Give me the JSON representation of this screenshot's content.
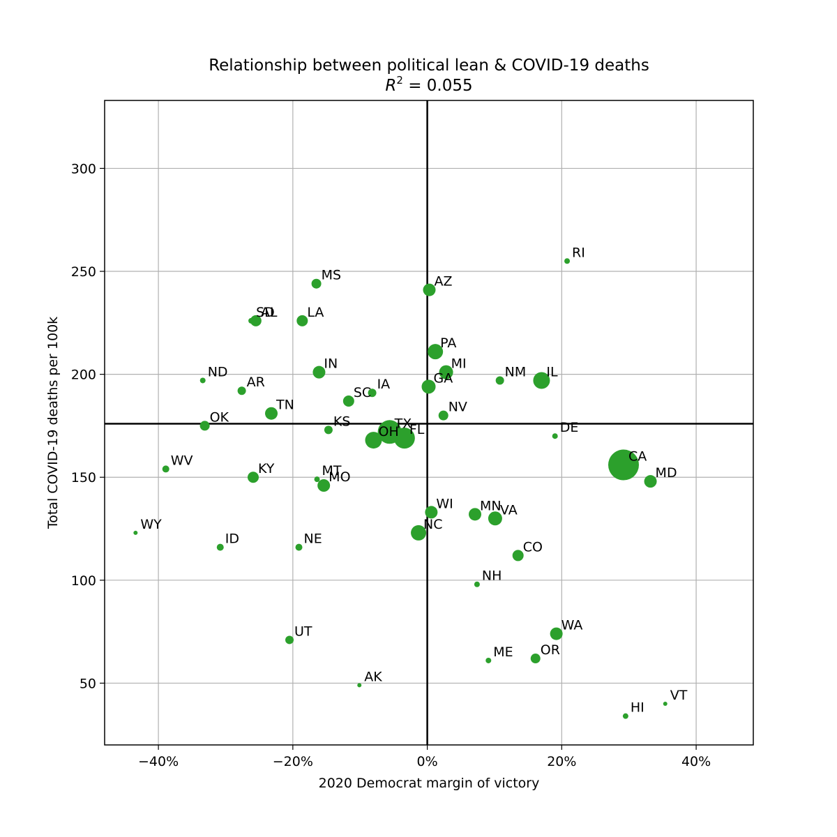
{
  "chart_data": {
    "type": "scatter",
    "title": "Relationship between political lean & COVID-19 deaths",
    "subtitle_prefix": "R",
    "subtitle_sup": "2",
    "subtitle_rest": " = 0.055",
    "xlabel": "2020 Democrat margin of victory",
    "ylabel": "Total COVID-19 deaths per 100k",
    "xlim": [
      -48,
      48.5
    ],
    "ylim": [
      20,
      333
    ],
    "x_ticks": [
      {
        "value": -40,
        "label": "−40%"
      },
      {
        "value": -20,
        "label": "−20%"
      },
      {
        "value": 0,
        "label": "0%"
      },
      {
        "value": 20,
        "label": "20%"
      },
      {
        "value": 40,
        "label": "40%"
      }
    ],
    "y_ticks": [
      {
        "value": 50,
        "label": "50"
      },
      {
        "value": 100,
        "label": "100"
      },
      {
        "value": 150,
        "label": "150"
      },
      {
        "value": 200,
        "label": "200"
      },
      {
        "value": 250,
        "label": "250"
      },
      {
        "value": 300,
        "label": "300"
      }
    ],
    "grid": true,
    "reference_lines": {
      "x": 0,
      "y": 176
    },
    "point_color": "#2ca02c",
    "points": [
      {
        "label": "RI",
        "x": 20.8,
        "y": 255,
        "size": 4
      },
      {
        "label": "MS",
        "x": -16.5,
        "y": 244,
        "size": 7
      },
      {
        "label": "AZ",
        "x": 0.3,
        "y": 241,
        "size": 9
      },
      {
        "label": "SD",
        "x": -26.2,
        "y": 226,
        "size": 4
      },
      {
        "label": "AL",
        "x": -25.5,
        "y": 226,
        "size": 8
      },
      {
        "label": "LA",
        "x": -18.6,
        "y": 226,
        "size": 8
      },
      {
        "label": "PA",
        "x": 1.2,
        "y": 211,
        "size": 11
      },
      {
        "label": "MI",
        "x": 2.8,
        "y": 201,
        "size": 10
      },
      {
        "label": "IN",
        "x": -16.1,
        "y": 201,
        "size": 9
      },
      {
        "label": "ND",
        "x": -33.4,
        "y": 197,
        "size": 4
      },
      {
        "label": "NM",
        "x": 10.8,
        "y": 197,
        "size": 6
      },
      {
        "label": "IL",
        "x": 17.0,
        "y": 197,
        "size": 12
      },
      {
        "label": "GA",
        "x": 0.2,
        "y": 194,
        "size": 10
      },
      {
        "label": "AR",
        "x": -27.6,
        "y": 192,
        "size": 6
      },
      {
        "label": "IA",
        "x": -8.2,
        "y": 191,
        "size": 6
      },
      {
        "label": "SC",
        "x": -11.7,
        "y": 187,
        "size": 8
      },
      {
        "label": "TN",
        "x": -23.2,
        "y": 181,
        "size": 9
      },
      {
        "label": "NV",
        "x": 2.4,
        "y": 180,
        "size": 7
      },
      {
        "label": "OK",
        "x": -33.1,
        "y": 175,
        "size": 7
      },
      {
        "label": "KS",
        "x": -14.7,
        "y": 173,
        "size": 6
      },
      {
        "label": "TX",
        "x": -5.6,
        "y": 172,
        "size": 17
      },
      {
        "label": "DE",
        "x": 19.0,
        "y": 170,
        "size": 4
      },
      {
        "label": "FL",
        "x": -3.4,
        "y": 169,
        "size": 15
      },
      {
        "label": "OH",
        "x": -8.0,
        "y": 168,
        "size": 12
      },
      {
        "label": "CA",
        "x": 29.2,
        "y": 156,
        "size": 22
      },
      {
        "label": "WV",
        "x": -38.9,
        "y": 154,
        "size": 5
      },
      {
        "label": "KY",
        "x": -25.9,
        "y": 150,
        "size": 8
      },
      {
        "label": "MT",
        "x": -16.4,
        "y": 149,
        "size": 4
      },
      {
        "label": "MD",
        "x": 33.2,
        "y": 148,
        "size": 9
      },
      {
        "label": "MO",
        "x": -15.4,
        "y": 146,
        "size": 9
      },
      {
        "label": "WI",
        "x": 0.6,
        "y": 133,
        "size": 9
      },
      {
        "label": "MN",
        "x": 7.1,
        "y": 132,
        "size": 9
      },
      {
        "label": "VA",
        "x": 10.1,
        "y": 130,
        "size": 10
      },
      {
        "label": "WY",
        "x": -43.4,
        "y": 123,
        "size": 3
      },
      {
        "label": "NC",
        "x": -1.3,
        "y": 123,
        "size": 11
      },
      {
        "label": "ID",
        "x": -30.8,
        "y": 116,
        "size": 5
      },
      {
        "label": "NE",
        "x": -19.1,
        "y": 116,
        "size": 5
      },
      {
        "label": "CO",
        "x": 13.5,
        "y": 112,
        "size": 8
      },
      {
        "label": "NH",
        "x": 7.4,
        "y": 98,
        "size": 4
      },
      {
        "label": "WA",
        "x": 19.2,
        "y": 74,
        "size": 9
      },
      {
        "label": "UT",
        "x": -20.5,
        "y": 71,
        "size": 6
      },
      {
        "label": "OR",
        "x": 16.1,
        "y": 62,
        "size": 7
      },
      {
        "label": "ME",
        "x": 9.1,
        "y": 61,
        "size": 4
      },
      {
        "label": "AK",
        "x": -10.1,
        "y": 49,
        "size": 3
      },
      {
        "label": "VT",
        "x": 35.4,
        "y": 40,
        "size": 3
      },
      {
        "label": "HI",
        "x": 29.5,
        "y": 34,
        "size": 4
      }
    ]
  }
}
